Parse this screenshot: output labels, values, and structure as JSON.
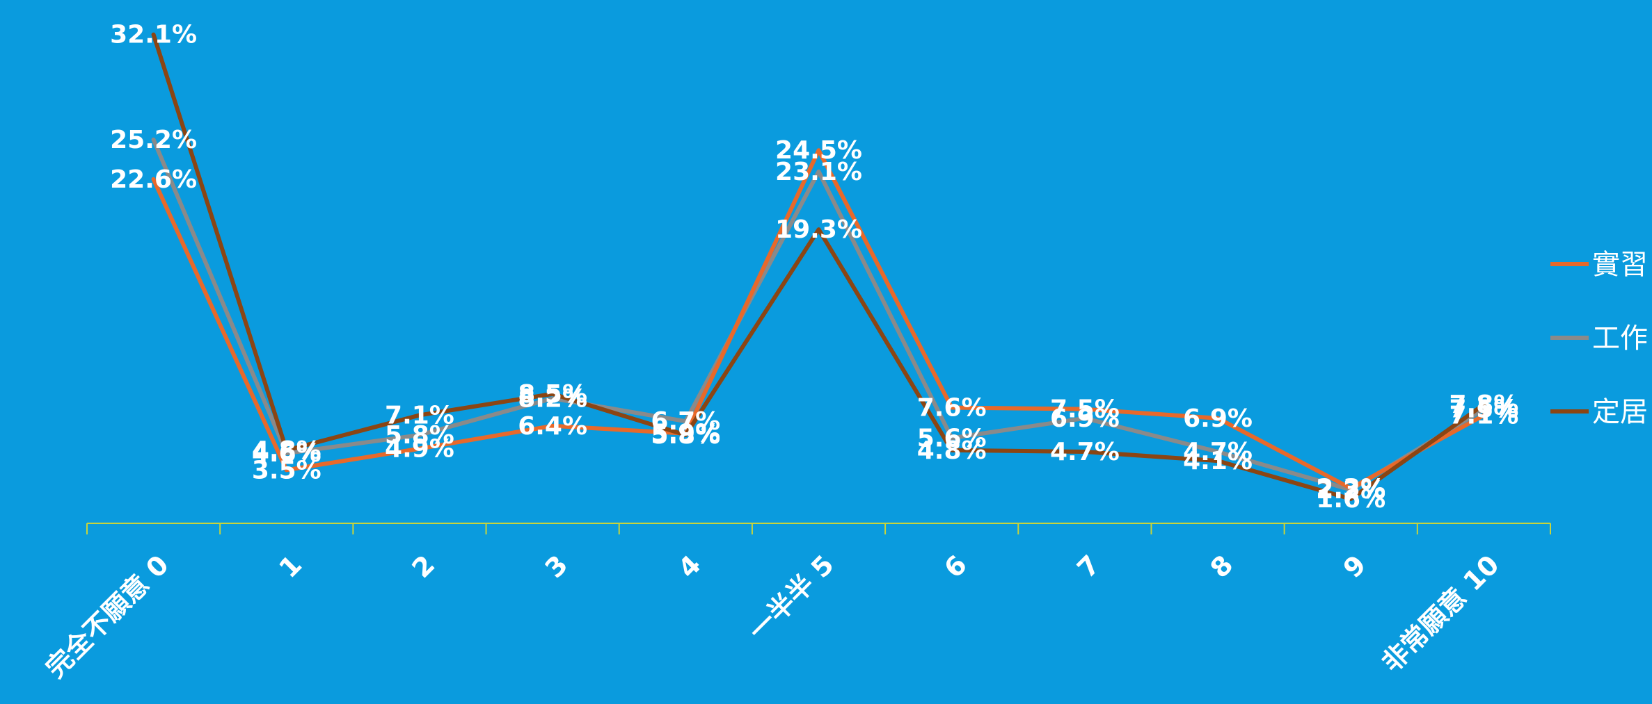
{
  "chart_data": {
    "type": "line",
    "categories": [
      "完全不願意 0",
      "1",
      "2",
      "3",
      "4",
      "一半半 5",
      "6",
      "7",
      "8",
      "9",
      "非常願意 10"
    ],
    "series": [
      {
        "name": "實習",
        "color": "#E8692A",
        "values": [
          22.6,
          3.5,
          4.9,
          6.4,
          5.9,
          24.5,
          7.6,
          7.5,
          6.9,
          2.3,
          7.1
        ]
      },
      {
        "name": "工作",
        "color": "#8A8A8A",
        "values": [
          25.2,
          4.6,
          5.8,
          8.2,
          6.7,
          23.1,
          5.6,
          6.9,
          4.7,
          2.2,
          7.5
        ]
      },
      {
        "name": "定居",
        "color": "#8B4513",
        "values": [
          32.1,
          4.8,
          7.1,
          8.5,
          5.8,
          19.3,
          4.8,
          4.7,
          4.1,
          1.6,
          7.8
        ]
      }
    ],
    "data_labels": [
      [
        "22.6%",
        "3.5%",
        "4.9%",
        "6.4%",
        "5.9%",
        "24.5%",
        "7.6%",
        "7.5%",
        "6.9%",
        "2.3%",
        "7.1%"
      ],
      [
        "25.2%",
        "4.6%",
        "5.8%",
        "8.2%",
        "6.7%",
        "23.1%",
        "5.6%",
        "6.9%",
        "4.7%",
        "2.2%",
        "7.5%"
      ],
      [
        "32.1%",
        "4.8%",
        "7.1%",
        "8.5%",
        "5.8%",
        "19.3%",
        "4.8%",
        "4.7%",
        "4.1%",
        "1.6%",
        "7.8%"
      ]
    ],
    "ylim": [
      0,
      33
    ],
    "grid": false,
    "legend": "right",
    "axis_color": "#C8D43A",
    "background": "#0A9BDE"
  }
}
